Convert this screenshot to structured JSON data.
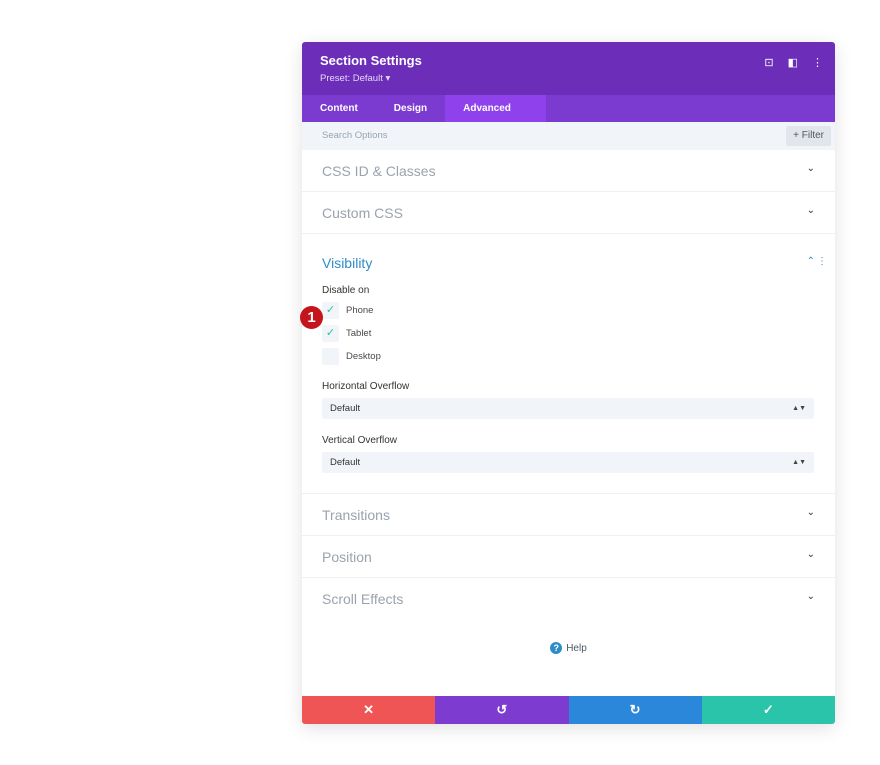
{
  "header": {
    "title": "Section Settings",
    "preset": "Preset: Default ▾"
  },
  "tabs": [
    {
      "label": "Content"
    },
    {
      "label": "Design"
    },
    {
      "label": "Advanced",
      "active": true
    }
  ],
  "search": {
    "placeholder": "Search Options",
    "filter_label": "+ Filter"
  },
  "sections_top": [
    {
      "label": "CSS ID & Classes"
    },
    {
      "label": "Custom CSS"
    }
  ],
  "visibility": {
    "title": "Visibility",
    "disable_on_label": "Disable on",
    "options": [
      {
        "label": "Phone",
        "checked": true
      },
      {
        "label": "Tablet",
        "checked": true
      },
      {
        "label": "Desktop",
        "checked": false
      }
    ],
    "horizontal_overflow": {
      "label": "Horizontal Overflow",
      "value": "Default"
    },
    "vertical_overflow": {
      "label": "Vertical Overflow",
      "value": "Default"
    }
  },
  "sections_bottom": [
    {
      "label": "Transitions"
    },
    {
      "label": "Position"
    },
    {
      "label": "Scroll Effects"
    }
  ],
  "help": {
    "label": "Help"
  },
  "annotation": {
    "step": "1"
  },
  "footer_colors": {
    "cancel": "#ef5555",
    "undo": "#7e3bd0",
    "redo": "#2b87da",
    "save": "#29c4a9"
  }
}
